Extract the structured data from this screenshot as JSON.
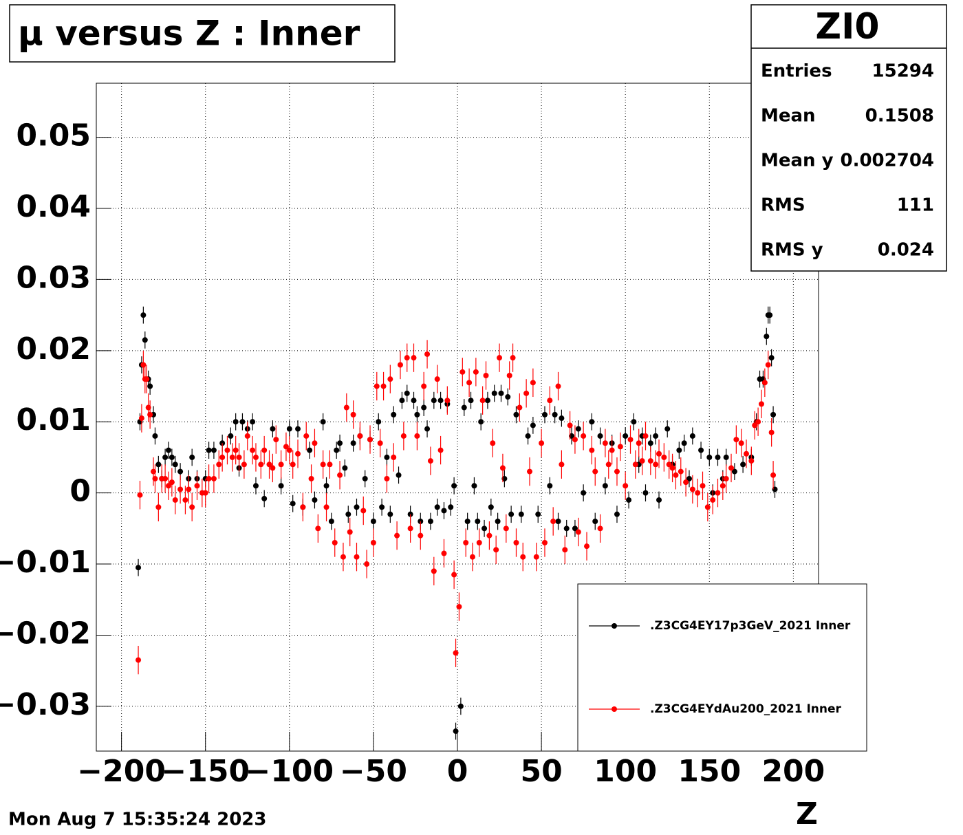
{
  "chart_data": {
    "type": "scatter",
    "title": "μ versus Z : Inner",
    "x_label": "Z",
    "date": "Mon Aug  7 15:35:24 2023",
    "xlim": [
      -215,
      215
    ],
    "ylim": [
      -0.0363,
      0.0576
    ],
    "xticks": [
      {
        "value": -200,
        "label": "−200"
      },
      {
        "value": -150,
        "label": "−150"
      },
      {
        "value": -100,
        "label": "−100"
      },
      {
        "value": -50,
        "label": "−50"
      },
      0,
      50,
      100,
      150,
      200
    ],
    "yticks": [
      {
        "value": -0.03,
        "label": "−0.03"
      },
      {
        "value": -0.02,
        "label": "−0.02"
      },
      {
        "value": -0.01,
        "label": "−0.01"
      },
      0,
      0.01,
      0.02,
      0.03,
      0.04,
      0.05
    ],
    "grid": true,
    "stats": {
      "title": "ZI0",
      "rows": [
        {
          "label": "Entries",
          "value": 15294
        },
        {
          "label": "Mean",
          "value": 0.1508
        },
        {
          "label": "Mean y",
          "value": 0.002704
        },
        {
          "label": "RMS",
          "value": 111
        },
        {
          "label": "RMS y",
          "value": 0.024
        }
      ]
    },
    "series": [
      {
        "name": ".Z3CG4EY17p3GeV_2021 Inner",
        "color": "#000000",
        "error": 0.0012,
        "x": [
          -190,
          -189,
          -188,
          -187,
          -186,
          -184,
          -183,
          -181,
          -180,
          -178,
          -176,
          -174,
          -172,
          -170,
          -168,
          -165,
          -160,
          -158,
          -155,
          -150,
          -148,
          -145,
          -140,
          -135,
          -132,
          -130,
          -128,
          -125,
          -122,
          -120,
          -115,
          -110,
          -105,
          -100,
          -98,
          -95,
          -92,
          -88,
          -85,
          -80,
          -78,
          -75,
          -72,
          -70,
          -67,
          -65,
          -62,
          -60,
          -58,
          -55,
          -52,
          -50,
          -47,
          -45,
          -42,
          -40,
          -38,
          -35,
          -33,
          -30,
          -28,
          -26,
          -24,
          -22,
          -20,
          -18,
          -16,
          -14,
          -12,
          -10,
          -8,
          -6,
          -4,
          -2,
          -1,
          2,
          4,
          6,
          8,
          10,
          12,
          14,
          16,
          18,
          20,
          22,
          24,
          26,
          28,
          30,
          32,
          35,
          38,
          42,
          45,
          48,
          52,
          55,
          58,
          60,
          62,
          65,
          68,
          70,
          72,
          75,
          80,
          82,
          85,
          88,
          92,
          95,
          100,
          102,
          105,
          108,
          110,
          112,
          115,
          118,
          120,
          125,
          128,
          132,
          135,
          138,
          140,
          145,
          150,
          152,
          155,
          158,
          160,
          165,
          170,
          175,
          178,
          180,
          182,
          184,
          185,
          186,
          187,
          188,
          189
        ],
        "values": [
          -0.0105,
          0.01,
          0.018,
          0.025,
          0.0215,
          0.016,
          0.015,
          0.011,
          0.008,
          0.004,
          0.002,
          0.005,
          0.006,
          0.005,
          0.004,
          0.003,
          0.002,
          0.005,
          0.002,
          0.002,
          0.006,
          0.006,
          0.007,
          0.008,
          0.01,
          0.0035,
          0.01,
          0.009,
          0.01,
          0.001,
          -0.0008,
          0.009,
          0.001,
          0.009,
          -0.0015,
          0.009,
          -0.002,
          0.006,
          -0.001,
          0.01,
          0.001,
          -0.004,
          0.006,
          0.007,
          0.0035,
          -0.003,
          0.007,
          -0.002,
          0.008,
          0.002,
          0.0075,
          -0.004,
          0.01,
          -0.002,
          0.005,
          -0.003,
          0.011,
          0.0025,
          0.013,
          0.014,
          -0.003,
          0.013,
          0.011,
          -0.004,
          0.012,
          0.009,
          -0.004,
          0.013,
          -0.002,
          0.013,
          -0.0025,
          0.0125,
          -0.002,
          0.001,
          -0.0335,
          -0.03,
          0.012,
          -0.004,
          0.013,
          0.001,
          -0.004,
          0.01,
          -0.005,
          0.013,
          -0.002,
          0.014,
          -0.004,
          0.014,
          0.002,
          0.0135,
          -0.003,
          0.011,
          -0.003,
          0.008,
          0.0095,
          -0.003,
          0.011,
          0.001,
          0.011,
          -0.004,
          0.0105,
          -0.005,
          0.008,
          -0.005,
          0.009,
          0.0,
          0.01,
          -0.004,
          0.008,
          0.001,
          0.007,
          -0.003,
          0.008,
          -0.001,
          0.01,
          0.004,
          0.008,
          0.0,
          0.007,
          0.008,
          -0.001,
          0.009,
          0.004,
          0.006,
          0.007,
          0.002,
          0.008,
          0.006,
          0.005,
          0.0,
          0.005,
          0.002,
          0.005,
          0.003,
          0.004,
          0.005,
          0.01,
          0.016,
          0.016,
          0.022,
          0.025,
          0.025,
          0.019,
          0.011,
          0.0005
        ]
      },
      {
        "name": ".Z3CG4EYdAu200_2021 Inner",
        "color": "#ff0000",
        "error": 0.002,
        "x": [
          -190,
          -189,
          -188,
          -187,
          -186,
          -185,
          -184,
          -183,
          -181,
          -180,
          -178,
          -176,
          -174,
          -172,
          -170,
          -168,
          -165,
          -162,
          -160,
          -158,
          -155,
          -152,
          -150,
          -148,
          -145,
          -142,
          -140,
          -137,
          -134,
          -132,
          -130,
          -127,
          -125,
          -122,
          -120,
          -117,
          -115,
          -112,
          -110,
          -108,
          -105,
          -102,
          -100,
          -98,
          -95,
          -92,
          -90,
          -87,
          -85,
          -83,
          -80,
          -78,
          -76,
          -73,
          -70,
          -68,
          -66,
          -64,
          -62,
          -60,
          -58,
          -56,
          -54,
          -52,
          -50,
          -48,
          -46,
          -44,
          -42,
          -40,
          -38,
          -36,
          -34,
          -32,
          -30,
          -28,
          -26,
          -24,
          -22,
          -20,
          -18,
          -16,
          -14,
          -12,
          -10,
          -8,
          -6,
          -2,
          -1,
          1,
          3,
          5,
          7,
          9,
          11,
          13,
          15,
          17,
          19,
          21,
          23,
          25,
          27,
          29,
          31,
          33,
          35,
          37,
          39,
          41,
          43,
          45,
          47,
          50,
          52,
          55,
          57,
          60,
          62,
          64,
          67,
          70,
          72,
          75,
          77,
          80,
          82,
          85,
          88,
          90,
          92,
          95,
          97,
          100,
          103,
          106,
          108,
          110,
          112,
          115,
          118,
          120,
          123,
          126,
          128,
          130,
          133,
          136,
          140,
          143,
          146,
          149,
          152,
          155,
          158,
          160,
          163,
          166,
          169,
          172,
          175,
          177,
          179,
          181,
          183,
          185,
          187,
          188
        ],
        "values": [
          -0.0235,
          -0.0003,
          0.0105,
          0.018,
          0.016,
          0.016,
          0.012,
          0.011,
          0.003,
          0.002,
          -0.002,
          0.002,
          0.002,
          0.001,
          0.0015,
          -0.001,
          0.0005,
          -0.001,
          0.0005,
          -0.002,
          0.001,
          0.0,
          0.0,
          0.002,
          0.002,
          0.004,
          0.005,
          0.006,
          0.005,
          0.006,
          0.005,
          0.004,
          0.008,
          0.006,
          0.005,
          0.004,
          0.006,
          0.004,
          0.0035,
          0.0075,
          0.004,
          0.0065,
          0.006,
          0.004,
          0.0055,
          -0.002,
          0.008,
          0.002,
          0.007,
          -0.005,
          0.004,
          -0.002,
          0.004,
          -0.007,
          0.0025,
          -0.009,
          0.012,
          -0.0055,
          0.011,
          -0.009,
          0.008,
          -0.0025,
          -0.01,
          0.0075,
          -0.007,
          0.015,
          0.007,
          0.015,
          0.002,
          0.016,
          0.005,
          -0.006,
          0.018,
          0.008,
          0.019,
          -0.005,
          0.019,
          0.008,
          -0.006,
          0.015,
          0.0195,
          0.0045,
          -0.011,
          0.016,
          0.006,
          -0.0085,
          0.013,
          -0.0115,
          -0.0225,
          -0.016,
          0.017,
          -0.007,
          0.0155,
          -0.009,
          0.017,
          -0.007,
          0.013,
          0.0165,
          -0.006,
          0.007,
          -0.008,
          0.019,
          0.0035,
          -0.005,
          0.0165,
          0.019,
          -0.007,
          0.012,
          -0.009,
          0.014,
          0.003,
          0.0155,
          -0.009,
          0.007,
          -0.007,
          0.013,
          -0.004,
          0.015,
          0.004,
          -0.008,
          0.0095,
          0.0075,
          -0.0055,
          0.008,
          -0.0075,
          0.006,
          0.003,
          -0.005,
          0.007,
          0.004,
          0.006,
          0.003,
          0.0065,
          0.001,
          0.0075,
          0.004,
          0.007,
          0.0045,
          0.008,
          0.0045,
          0.004,
          0.0055,
          0.005,
          0.004,
          0.0035,
          0.0025,
          0.003,
          0.0015,
          0.0005,
          0.0,
          0.001,
          -0.002,
          -0.001,
          0.0,
          0.001,
          0.002,
          0.0035,
          0.0075,
          0.007,
          0.0055,
          0.0045,
          0.0095,
          0.01,
          0.0125,
          0.0155,
          0.018,
          0.0085,
          0.0025
        ]
      }
    ]
  }
}
